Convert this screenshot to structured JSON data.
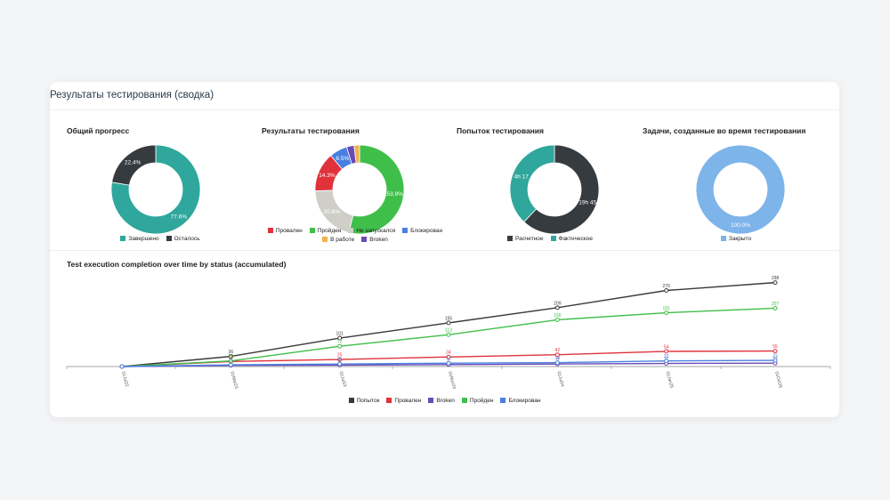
{
  "card": {
    "title": "Результаты тестирования (сводка)"
  },
  "panels": [
    {
      "title": "Общий прогресс"
    },
    {
      "title": "Результаты тестирования"
    },
    {
      "title": "Попыток тестирования"
    },
    {
      "title": "Задачи, созданные во время тестирования"
    }
  ],
  "chart_data": [
    {
      "type": "pie",
      "title": "Общий прогресс",
      "slices": [
        {
          "name": "Завершено",
          "value": 77.6,
          "label": "77.6%",
          "color": "#2fa79c"
        },
        {
          "name": "Осталось",
          "value": 22.4,
          "label": "22.4%",
          "color": "#363b40"
        }
      ]
    },
    {
      "type": "pie",
      "title": "Результаты тестирования",
      "slices": [
        {
          "name": "Пройден",
          "value": 53.9,
          "label": "53.9%",
          "color": "#3fbf4a"
        },
        {
          "name": "Не запускался",
          "value": 20.6,
          "label": "20.6%",
          "color": "#cfcfc7"
        },
        {
          "name": "Провален",
          "value": 14.3,
          "label": "14.3%",
          "color": "#e0323b"
        },
        {
          "name": "Блокирован",
          "value": 6.5,
          "label": "6.5%",
          "color": "#4a7fe0"
        },
        {
          "name": "Broken",
          "value": 2.7,
          "label": "",
          "color": "#6a4bb5"
        },
        {
          "name": "В работе",
          "value": 2.0,
          "label": "",
          "color": "#f2b24a"
        }
      ],
      "legend_order": [
        "Провален",
        "Пройден",
        "Не запускался",
        "Блокирован",
        "В работе",
        "Broken"
      ]
    },
    {
      "type": "pie",
      "title": "Попыток тестирования",
      "slices": [
        {
          "name": "Расчетное",
          "value": 62,
          "label": "19h 45",
          "color": "#363b40"
        },
        {
          "name": "Фактическое",
          "value": 38,
          "label": "4h 17",
          "color": "#2fa79c"
        }
      ]
    },
    {
      "type": "pie",
      "title": "Задачи, созданные во время тестирования",
      "slices": [
        {
          "name": "Закрыто",
          "value": 100,
          "label": "100.0%",
          "color": "#7db4ea"
        }
      ]
    },
    {
      "type": "line",
      "title": "Test execution completion over time by status (accumulated)",
      "x": [
        "01Jul22",
        "01Mar23",
        "01Jul23",
        "01Nov23",
        "01Jul24",
        "01Jan25",
        "01Oct25"
      ],
      "ylim": [
        0,
        300
      ],
      "series": [
        {
          "name": "Попыток",
          "color": "#3a3a3a",
          "values": [
            0,
            36,
            101,
            155,
            209,
            270,
            298
          ]
        },
        {
          "name": "Провален",
          "color": "#e0323b",
          "values": [
            0,
            18,
            25,
            34,
            42,
            54,
            55
          ]
        },
        {
          "name": "Broken",
          "color": "#6a4bb5",
          "values": [
            0,
            4,
            5,
            7,
            9,
            11,
            12
          ]
        },
        {
          "name": "Пройден",
          "color": "#3fbf4a",
          "values": [
            0,
            20,
            72,
            113,
            166,
            191,
            207
          ]
        },
        {
          "name": "Блокирован",
          "color": "#4a7fe0",
          "values": [
            0,
            6,
            9,
            12,
            14,
            20,
            22
          ]
        }
      ]
    }
  ]
}
